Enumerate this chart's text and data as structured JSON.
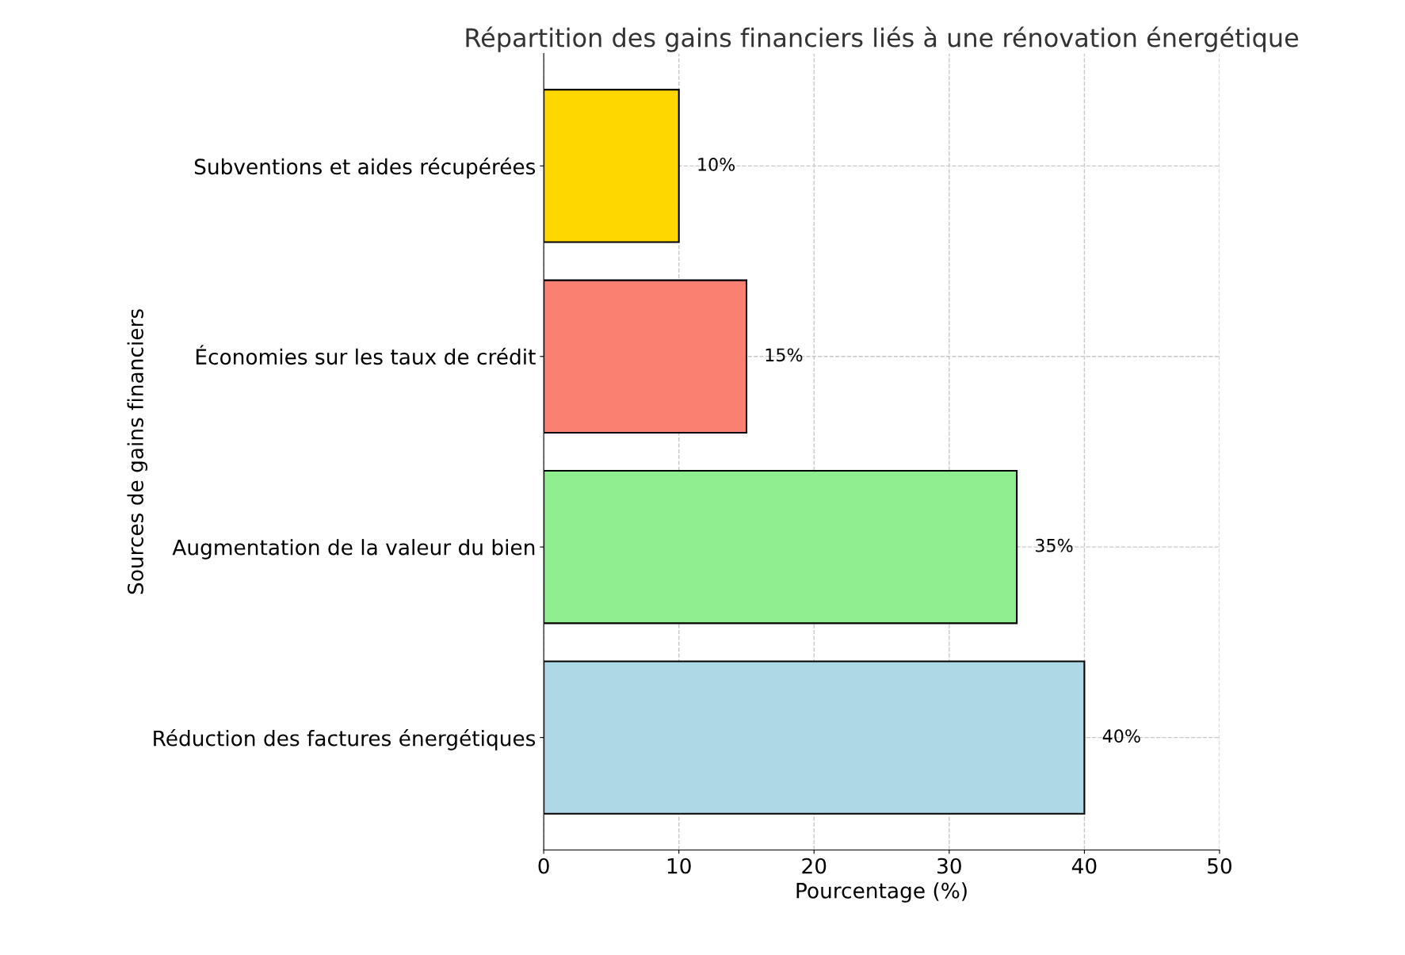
{
  "chart_data": {
    "type": "bar",
    "orientation": "horizontal",
    "title": "Répartition des gains financiers liés à une rénovation énergétique",
    "xlabel": "Pourcentage (%)",
    "ylabel": "Sources de gains financiers",
    "categories": [
      "Subventions et aides récupérées",
      "Économies sur les taux de crédit",
      "Augmentation de la valeur du bien",
      "Réduction des factures énergétiques"
    ],
    "values": [
      10,
      15,
      35,
      40
    ],
    "colors": [
      "#ffd700",
      "#fa8072",
      "#90ee90",
      "#add8e6"
    ],
    "value_labels": [
      "10%",
      "15%",
      "35%",
      "40%"
    ],
    "xlim": [
      0,
      50
    ],
    "xticks": [
      0,
      10,
      20,
      30,
      40,
      50
    ],
    "grid": true,
    "line_style": "dashed"
  }
}
